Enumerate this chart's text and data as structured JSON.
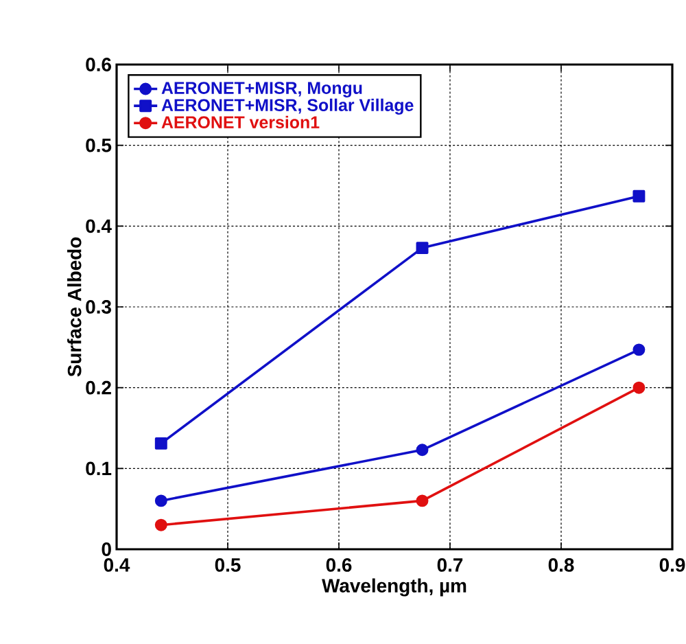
{
  "chart_data": {
    "type": "line",
    "xlabel": "Wavelength, µm",
    "ylabel": "Surface Albedo",
    "xlim": [
      0.4,
      0.9
    ],
    "xticks": [
      0.4,
      0.5,
      0.6,
      0.7,
      0.8,
      0.9
    ],
    "ylim": [
      0,
      0.6
    ],
    "yticks": [
      0,
      0.1,
      0.2,
      0.3,
      0.4,
      0.5,
      0.6
    ],
    "x": [
      0.44,
      0.675,
      0.87
    ],
    "series": [
      {
        "name": "AERONET+MISR, Mongu",
        "color": "#1010c8",
        "marker": "circle",
        "values": [
          0.06,
          0.123,
          0.247
        ]
      },
      {
        "name": "AERONET+MISR, Sollar Village",
        "color": "#1010c8",
        "marker": "square",
        "values": [
          0.131,
          0.373,
          0.437
        ]
      },
      {
        "name": "AERONET version1",
        "color": "#e01010",
        "marker": "circle",
        "values": [
          0.03,
          0.06,
          0.2
        ]
      }
    ],
    "grid": true,
    "legend": "top left",
    "line_style": "solid"
  }
}
